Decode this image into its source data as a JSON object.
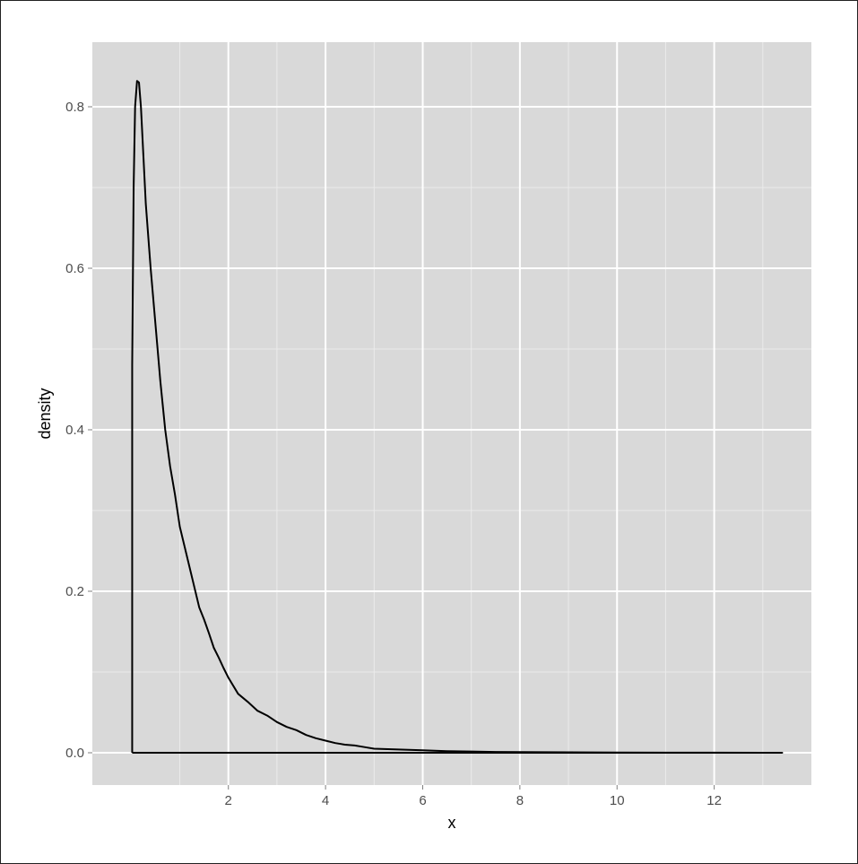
{
  "chart_data": {
    "type": "line",
    "xlabel": "x",
    "ylabel": "density",
    "xlim": [
      -0.8,
      14.0
    ],
    "ylim": [
      -0.04,
      0.88
    ],
    "x_ticks": [
      2,
      4,
      6,
      8,
      10,
      12
    ],
    "x_tick_labels": [
      "2",
      "4",
      "6",
      "8",
      "10",
      "12"
    ],
    "y_ticks": [
      0.0,
      0.2,
      0.4,
      0.6,
      0.8
    ],
    "y_tick_labels": [
      "0.0",
      "0.2",
      "0.4",
      "0.6",
      "0.8"
    ],
    "grid": true,
    "legend": "none",
    "colors": {
      "panel_background": "#d9d9d9",
      "grid_major": "#ffffff",
      "grid_minor": "#ebebeb",
      "line": "#000000",
      "tick_text": "#4d4d4d"
    },
    "series": [
      {
        "x": [
          0.02,
          0.02,
          0.05,
          0.08,
          0.12,
          0.16,
          0.2,
          0.25,
          0.3,
          0.4,
          0.5,
          0.6,
          0.7,
          0.8,
          0.9,
          1.0,
          1.1,
          1.2,
          1.3,
          1.4,
          1.5,
          1.6,
          1.7,
          1.8,
          1.9,
          2.0,
          2.2,
          2.4,
          2.6,
          2.8,
          3.0,
          3.2,
          3.4,
          3.6,
          3.8,
          4.0,
          4.2,
          4.4,
          4.6,
          4.8,
          5.0,
          5.5,
          6.0,
          6.5,
          7.0,
          7.5,
          8.0,
          9.0,
          10.0,
          11.0,
          12.0,
          13.0,
          13.4,
          13.4,
          0.02
        ],
        "y": [
          0.0,
          0.48,
          0.7,
          0.8,
          0.832,
          0.83,
          0.8,
          0.74,
          0.68,
          0.6,
          0.53,
          0.46,
          0.4,
          0.355,
          0.32,
          0.28,
          0.255,
          0.23,
          0.205,
          0.18,
          0.165,
          0.148,
          0.13,
          0.118,
          0.105,
          0.093,
          0.073,
          0.063,
          0.052,
          0.046,
          0.038,
          0.032,
          0.028,
          0.022,
          0.018,
          0.015,
          0.012,
          0.01,
          0.009,
          0.007,
          0.005,
          0.004,
          0.003,
          0.002,
          0.0015,
          0.001,
          0.0008,
          0.0005,
          0.0003,
          0.0002,
          0.0001,
          0.0,
          0.0,
          0.0,
          0.0
        ]
      }
    ]
  }
}
